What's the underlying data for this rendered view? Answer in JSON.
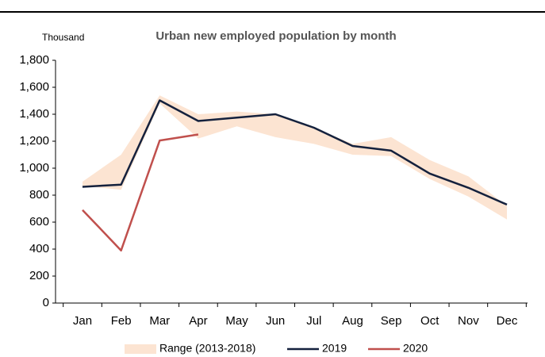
{
  "chart_data": {
    "type": "line",
    "title": "Urban new employed population by month",
    "y_unit": "Thousand",
    "categories": [
      "Jan",
      "Feb",
      "Mar",
      "Apr",
      "May",
      "Jun",
      "Jul",
      "Aug",
      "Sep",
      "Oct",
      "Nov",
      "Dec"
    ],
    "series": [
      {
        "name": "Range (2013-2018)",
        "kind": "range",
        "color": "#fce4d2",
        "high": [
          900,
          1100,
          1540,
          1400,
          1420,
          1400,
          1300,
          1180,
          1230,
          1060,
          940,
          720
        ],
        "low": [
          870,
          840,
          1480,
          1220,
          1310,
          1230,
          1180,
          1100,
          1090,
          920,
          790,
          620
        ]
      },
      {
        "name": "2019",
        "color": "#14213d",
        "values": [
          862,
          878,
          1503,
          1350,
          1375,
          1400,
          1300,
          1165,
          1130,
          960,
          855,
          730
        ]
      },
      {
        "name": "2020",
        "color": "#c0504d",
        "values": [
          690,
          390,
          1205,
          1250,
          null,
          null,
          null,
          null,
          null,
          null,
          null,
          null
        ]
      }
    ],
    "ylim": [
      0,
      1800
    ],
    "yticks": [
      0,
      200,
      400,
      600,
      800,
      {
        "value": 1000,
        "label": "1,000"
      },
      {
        "value": 1200,
        "label": "1,200"
      },
      {
        "value": 1400,
        "label": "1,400"
      },
      {
        "value": 1600,
        "label": "1,600"
      },
      {
        "value": 1800,
        "label": "1,800"
      }
    ],
    "legend": "bottom"
  }
}
